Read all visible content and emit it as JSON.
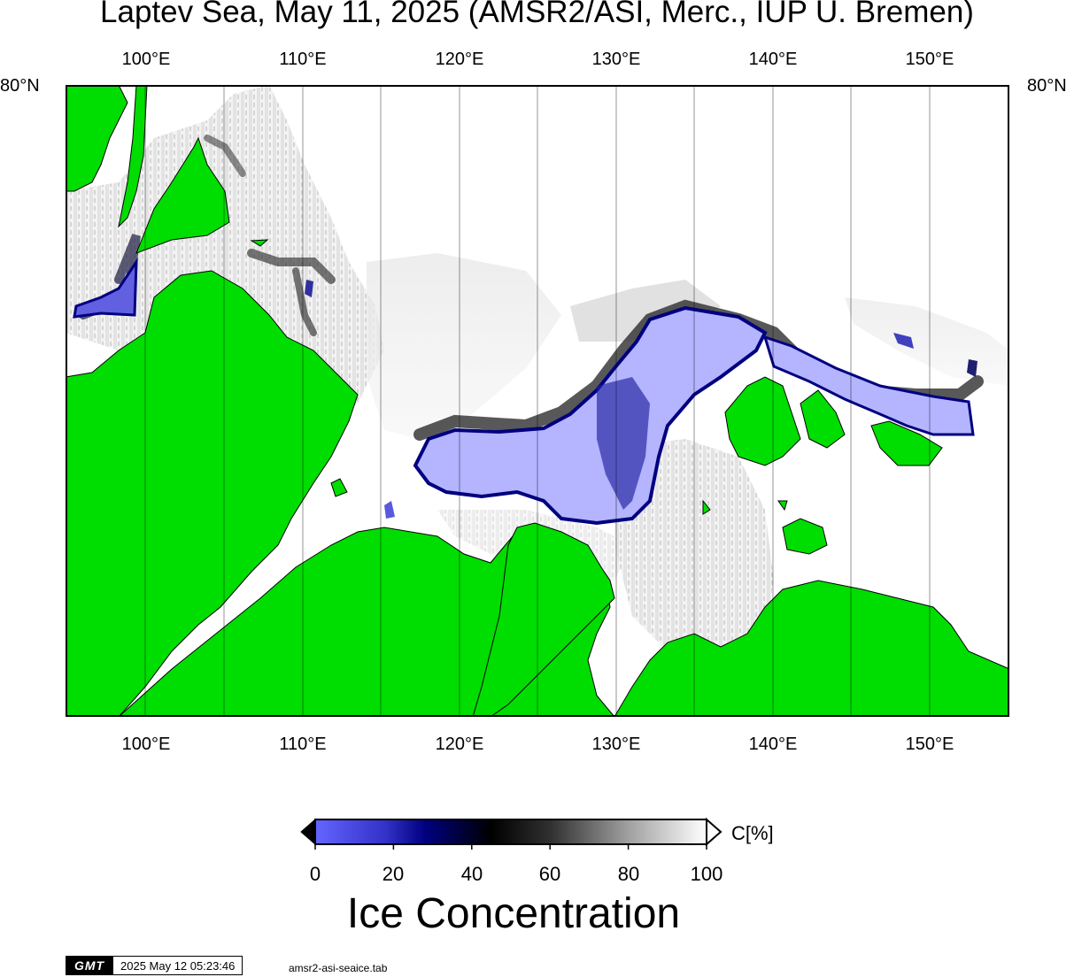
{
  "title": "Laptev Sea, May 11, 2025 (AMSR2/ASI, Merc., IUP U. Bremen)",
  "map": {
    "lon_range": [
      95,
      155
    ],
    "lon_ticks": [
      "100°E",
      "110°E",
      "120°E",
      "130°E",
      "140°E",
      "150°E"
    ],
    "lat_tick": "80°N",
    "colors": {
      "land": "#00dd00",
      "water": "#ffffff",
      "ice_low": "#b4b4ff",
      "ice_mid": "#000080"
    }
  },
  "colorbar": {
    "tick_labels": [
      "0",
      "20",
      "40",
      "60",
      "80",
      "100"
    ],
    "unit": "C[%]",
    "label": "Ice Concentration"
  },
  "timestamp": {
    "logo": "GMT",
    "date": "2025 May 12 05:23:46",
    "command": "amsr2-asi-seaice.tab"
  }
}
